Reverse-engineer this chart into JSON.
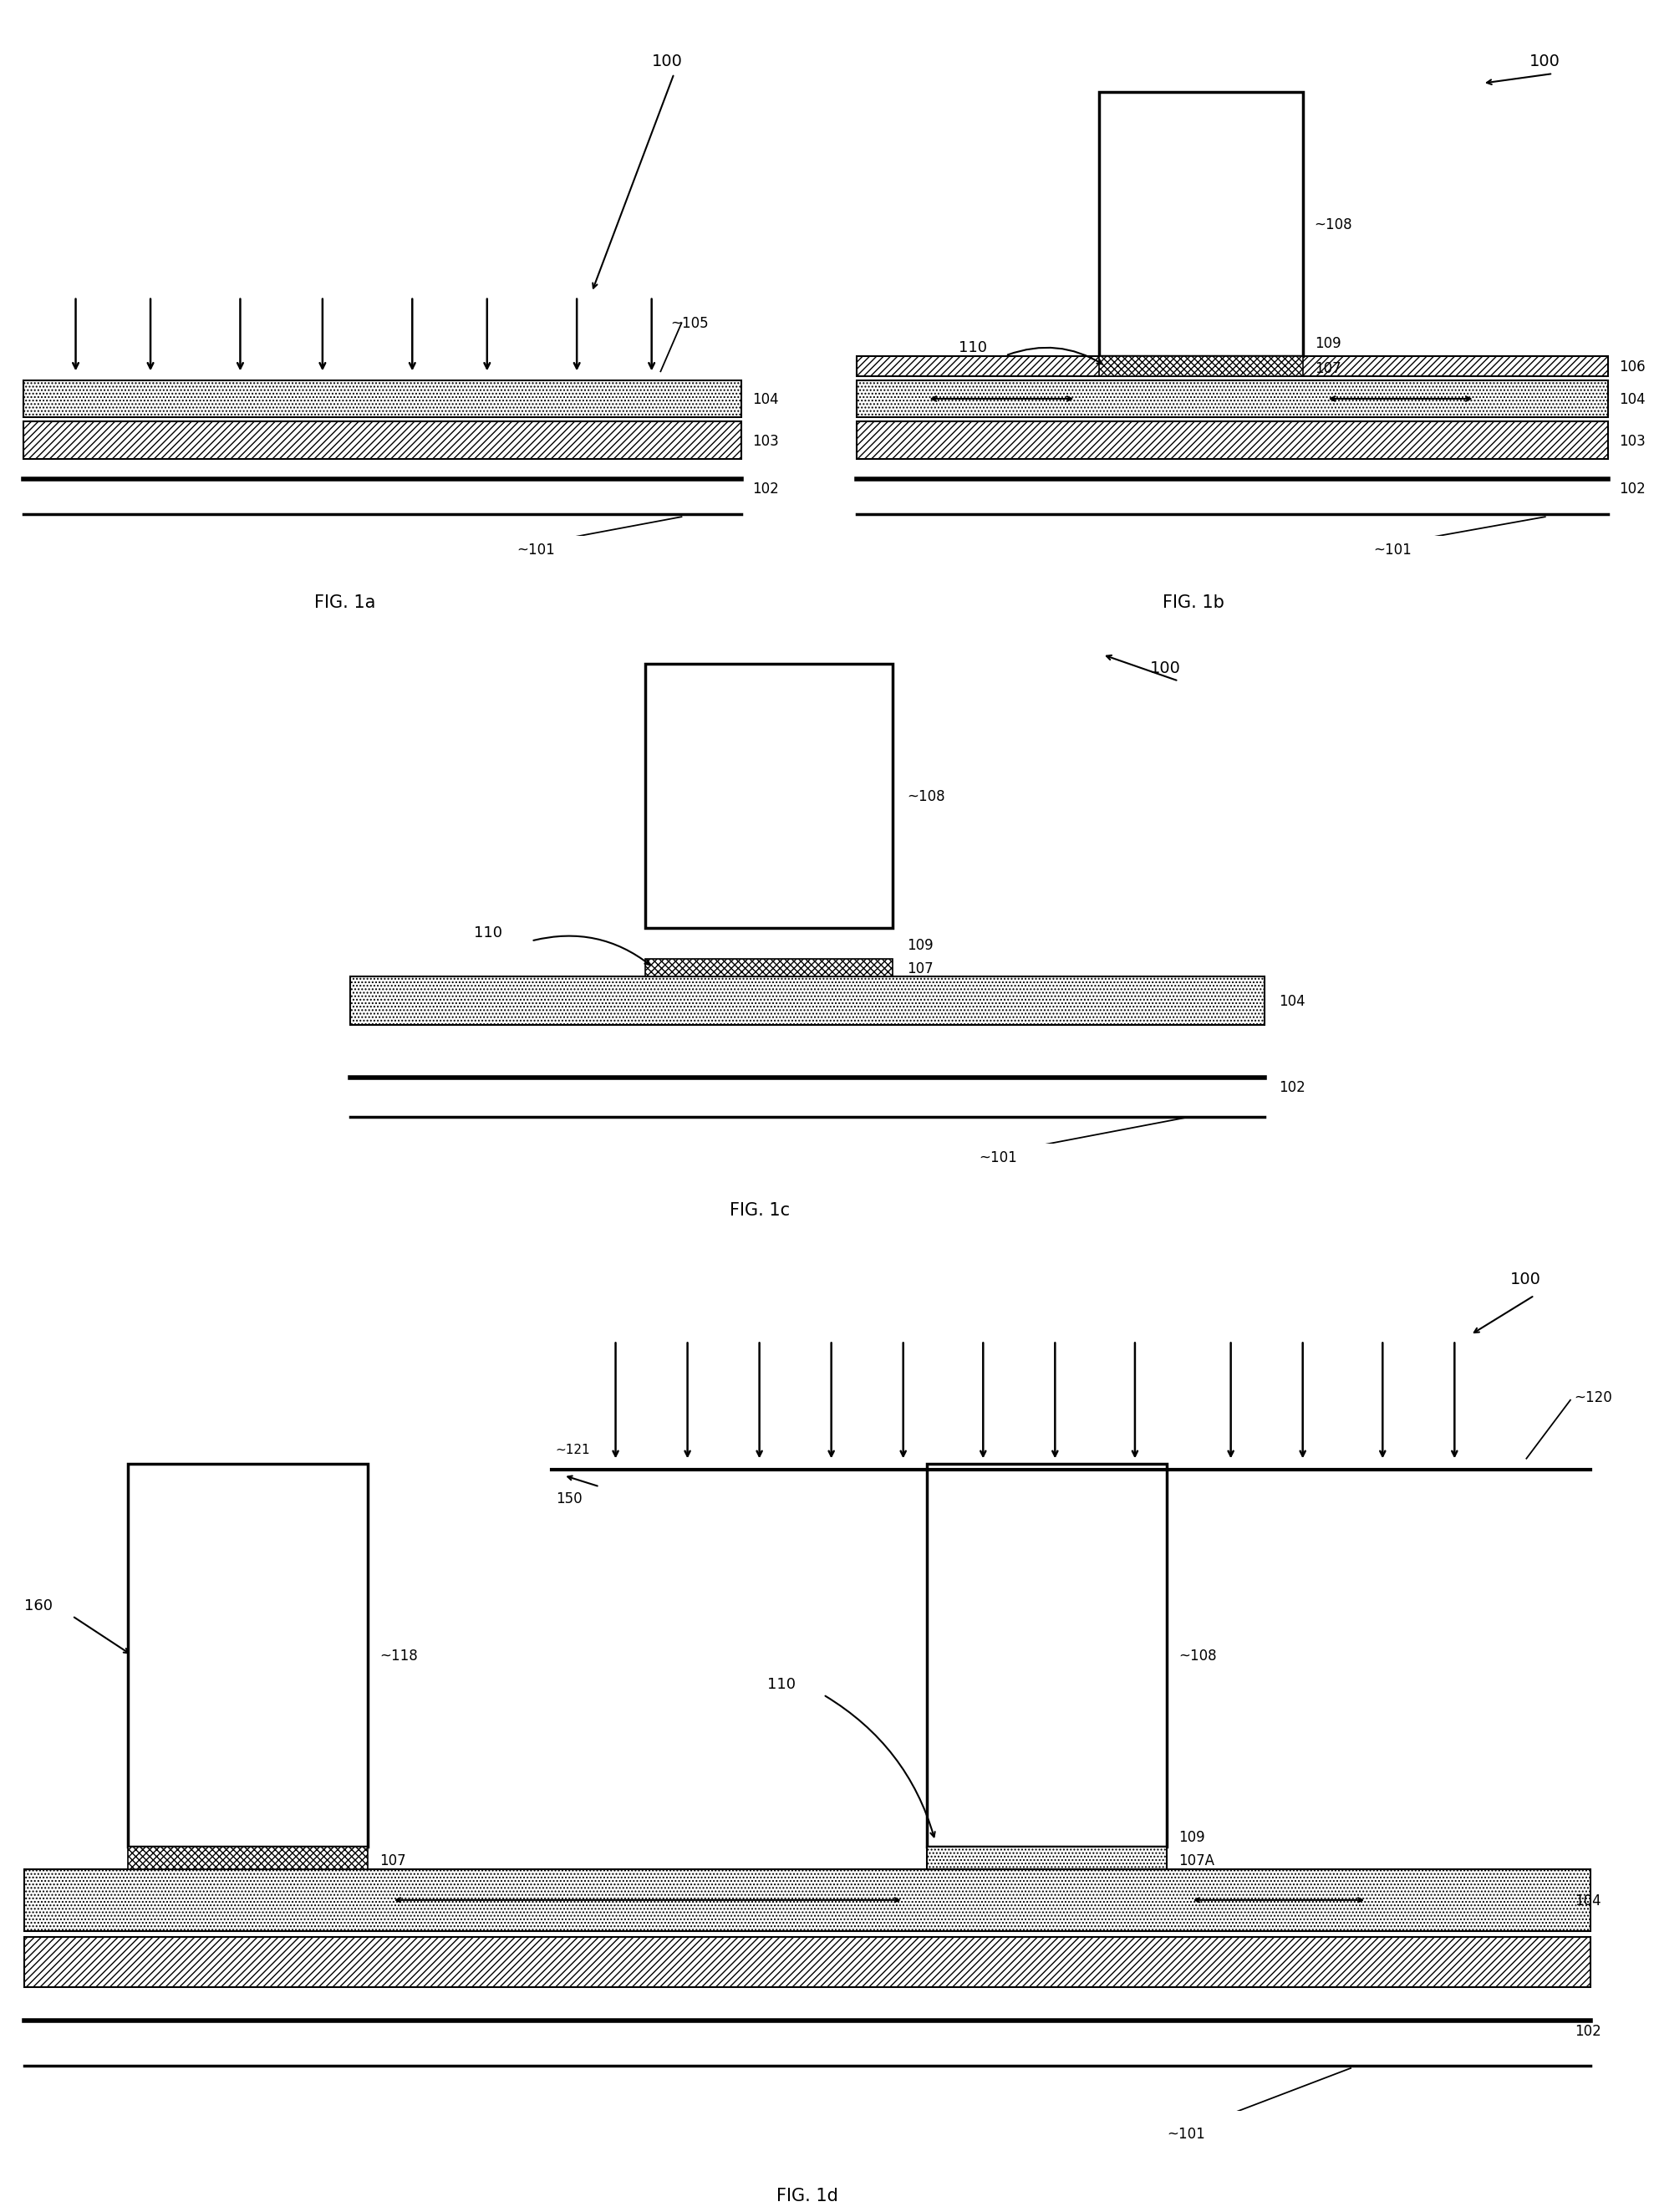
{
  "fig_width": 20.34,
  "fig_height": 26.91,
  "bg_color": "#ffffff",
  "panels": {
    "1a": {
      "label": "FIG. 1a"
    },
    "1b": {
      "label": "FIG. 1b"
    },
    "1c": {
      "label": "FIG. 1c"
    },
    "1d": {
      "label": "FIG. 1d"
    }
  },
  "ref_nums": {
    "100": "100",
    "101": "~101",
    "102": "102",
    "103": "103",
    "104": "104",
    "105": "~105",
    "106": "106",
    "107": "107",
    "108": "~108",
    "109": "109",
    "110": "110",
    "118": "~118",
    "120": "~120",
    "121": "~121",
    "150": "150",
    "160": "160",
    "107A": "107A"
  }
}
